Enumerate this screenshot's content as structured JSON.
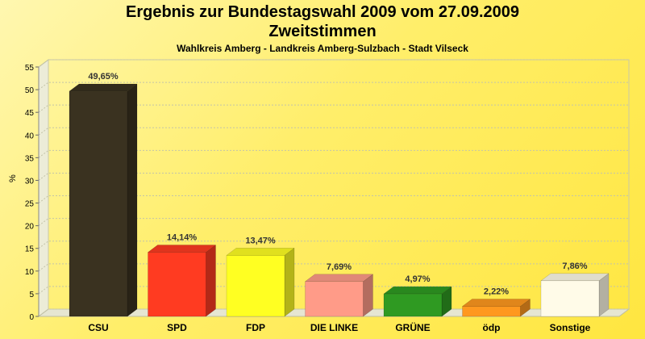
{
  "chart_data": {
    "type": "bar",
    "title": "Ergebnis zur Bundestagswahl 2009 vom 27.09.2009",
    "title_line2": "Zweitstimmen",
    "subtitle": "Wahlkreis Amberg - Landkreis Amberg-Sulzbach - Stadt Vilseck",
    "ylabel": "%",
    "xlabel": "",
    "ylim": [
      0,
      55
    ],
    "yticks": [
      0,
      5,
      10,
      15,
      20,
      25,
      30,
      35,
      40,
      45,
      50,
      55
    ],
    "grid": true,
    "categories": [
      "CSU",
      "SPD",
      "FDP",
      "DIE LINKE",
      "GRÜNE",
      "ödp",
      "Sonstige"
    ],
    "values": [
      49.65,
      14.14,
      13.47,
      7.69,
      4.97,
      2.22,
      7.86
    ],
    "value_labels": [
      "49,65%",
      "14,14%",
      "13,47%",
      "7,69%",
      "4,97%",
      "2,22%",
      "7,86%"
    ],
    "colors": [
      "#3a3220",
      "#ff3b21",
      "#ffff22",
      "#ff9b88",
      "#2f9a22",
      "#ff981f",
      "#fffbe8"
    ]
  }
}
